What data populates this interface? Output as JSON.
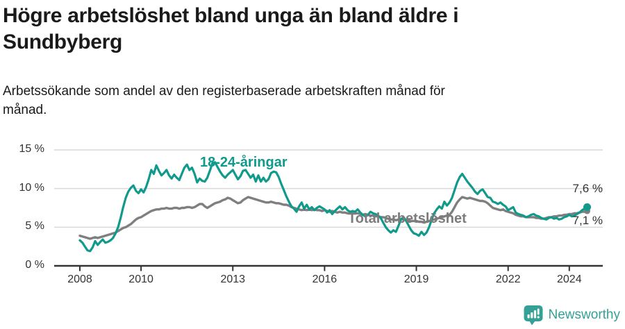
{
  "header": {
    "title_lines": [
      "Högre arbetslöshet bland unga än bland äldre i",
      "Sundbyberg"
    ],
    "subtitle_lines": [
      "Arbetssökande som andel av den registerbaserade arbetskraften månad för",
      "månad."
    ]
  },
  "chart_data": {
    "type": "line",
    "x_start": 2008.0,
    "x_step_months": 1,
    "xlim": [
      2007.2,
      2025.1
    ],
    "ylim": [
      0,
      15
    ],
    "grid": "horizontal",
    "legend_position": "inline-labels",
    "y_ticks": [
      {
        "value": 0,
        "label": "0 %"
      },
      {
        "value": 5,
        "label": "5 %"
      },
      {
        "value": 10,
        "label": "10 %"
      },
      {
        "value": 15,
        "label": "15 %"
      }
    ],
    "x_ticks": [
      {
        "value": 2008,
        "label": "2008"
      },
      {
        "value": 2010,
        "label": "2010"
      },
      {
        "value": 2013,
        "label": "2013"
      },
      {
        "value": 2016,
        "label": "2016"
      },
      {
        "value": 2019,
        "label": "2019"
      },
      {
        "value": 2022,
        "label": "2022"
      },
      {
        "value": 2024,
        "label": "2024"
      }
    ],
    "series": [
      {
        "name": "18-24-åringar",
        "color": "#109a8c",
        "end_label": "7,6 %",
        "end_value": 7.6,
        "values": [
          3.3,
          3.0,
          2.5,
          2.0,
          1.9,
          2.4,
          3.2,
          2.7,
          3.1,
          3.4,
          3.0,
          3.1,
          3.3,
          3.6,
          4.2,
          5.0,
          6.2,
          7.6,
          8.8,
          9.6,
          10.1,
          10.4,
          9.7,
          9.4,
          9.9,
          9.5,
          10.2,
          11.2,
          12.4,
          11.9,
          13.0,
          12.3,
          11.7,
          12.0,
          12.4,
          11.7,
          11.3,
          11.8,
          11.4,
          11.1,
          11.9,
          12.7,
          13.1,
          12.4,
          12.7,
          11.9,
          10.8,
          11.3,
          11.0,
          10.9,
          11.4,
          12.3,
          13.3,
          13.4,
          12.8,
          12.2,
          11.7,
          11.4,
          11.8,
          12.1,
          12.4,
          11.8,
          11.2,
          11.6,
          12.3,
          12.4,
          11.9,
          11.4,
          11.8,
          10.9,
          11.7,
          10.9,
          11.4,
          10.9,
          11.2,
          12.0,
          12.2,
          12.1,
          11.5,
          10.6,
          9.8,
          9.0,
          8.3,
          7.7,
          7.4,
          7.0,
          7.7,
          8.2,
          7.4,
          7.9,
          7.3,
          7.6,
          7.2,
          7.5,
          7.7,
          7.5,
          7.3,
          6.9,
          7.2,
          6.7,
          7.1,
          7.4,
          7.7,
          7.3,
          7.6,
          7.2,
          7.0,
          7.1,
          7.0,
          7.3,
          6.9,
          6.6,
          6.4,
          6.6,
          7.0,
          6.8,
          6.7,
          6.5,
          6.2,
          5.6,
          5.0,
          4.6,
          4.3,
          4.6,
          4.4,
          5.2,
          6.0,
          6.3,
          5.8,
          5.2,
          4.6,
          4.2,
          4.1,
          3.9,
          4.4,
          4.0,
          4.3,
          5.0,
          6.0,
          6.8,
          7.3,
          7.7,
          7.4,
          8.3,
          7.8,
          8.2,
          8.8,
          9.8,
          10.8,
          11.5,
          11.9,
          11.4,
          10.9,
          10.5,
          10.1,
          9.6,
          9.3,
          9.7,
          9.9,
          9.4,
          8.9,
          8.8,
          8.3,
          8.2,
          8.0,
          8.2,
          7.9,
          7.7,
          7.2,
          7.4,
          7.6,
          6.9,
          6.7,
          6.6,
          6.5,
          6.3,
          6.4,
          6.6,
          6.7,
          6.5,
          6.4,
          6.2,
          6.1,
          6.0,
          6.2,
          6.3,
          6.1,
          6.2,
          6.0,
          6.1,
          6.3,
          6.4,
          6.6,
          6.4,
          6.5,
          6.7,
          6.9,
          7.2,
          7.4,
          7.6
        ]
      },
      {
        "name": "Total arbetslöshet",
        "color": "#7f7f7f",
        "end_label": "7,1 %",
        "end_value": 7.1,
        "values": [
          3.9,
          3.8,
          3.7,
          3.6,
          3.5,
          3.6,
          3.7,
          3.6,
          3.7,
          3.8,
          3.9,
          4.0,
          4.1,
          4.2,
          4.3,
          4.5,
          4.7,
          4.9,
          5.0,
          5.2,
          5.4,
          5.7,
          6.0,
          6.2,
          6.3,
          6.5,
          6.7,
          6.9,
          7.1,
          7.2,
          7.3,
          7.3,
          7.4,
          7.4,
          7.5,
          7.4,
          7.4,
          7.5,
          7.5,
          7.4,
          7.5,
          7.5,
          7.6,
          7.6,
          7.5,
          7.6,
          7.8,
          8.0,
          8.0,
          7.7,
          7.5,
          7.7,
          7.9,
          8.1,
          8.2,
          8.3,
          8.5,
          8.6,
          8.8,
          8.7,
          8.5,
          8.3,
          8.1,
          8.2,
          8.5,
          8.7,
          8.9,
          8.8,
          8.7,
          8.6,
          8.5,
          8.4,
          8.3,
          8.2,
          8.2,
          8.3,
          8.2,
          8.1,
          8.1,
          8.0,
          7.9,
          7.9,
          7.8,
          7.6,
          7.5,
          7.4,
          7.3,
          7.2,
          7.3,
          7.2,
          7.3,
          7.2,
          7.3,
          7.2,
          7.2,
          7.1,
          7.2,
          7.1,
          7.0,
          7.1,
          7.0,
          6.9,
          7.0,
          6.9,
          6.9,
          6.8,
          6.8,
          6.9,
          6.8,
          6.8,
          6.7,
          6.6,
          6.7,
          6.6,
          6.5,
          6.5,
          6.4,
          6.4,
          6.3,
          6.3,
          6.2,
          6.1,
          6.0,
          6.0,
          5.9,
          6.0,
          6.1,
          6.0,
          5.9,
          5.9,
          5.8,
          5.8,
          5.8,
          5.7,
          5.7,
          5.6,
          5.7,
          5.8,
          5.9,
          6.0,
          6.1,
          6.2,
          6.3,
          6.4,
          6.5,
          6.6,
          7.0,
          7.6,
          8.2,
          8.6,
          8.9,
          8.8,
          8.7,
          8.8,
          8.7,
          8.6,
          8.5,
          8.4,
          8.4,
          8.3,
          8.1,
          7.8,
          7.5,
          7.4,
          7.3,
          7.2,
          7.3,
          7.1,
          7.0,
          6.9,
          6.8,
          6.6,
          6.5,
          6.4,
          6.4,
          6.3,
          6.3,
          6.3,
          6.3,
          6.2,
          6.2,
          6.1,
          6.1,
          6.2,
          6.3,
          6.3,
          6.4,
          6.4,
          6.5,
          6.5,
          6.6,
          6.6,
          6.7,
          6.7,
          6.8,
          6.8,
          6.9,
          7.0,
          7.0,
          7.1
        ]
      }
    ]
  },
  "footer": {
    "brand": "Newsworthy",
    "logo_icon": "newsworthy-bar-chart-bubble-icon"
  },
  "colors": {
    "accent_teal": "#109a8c",
    "line_gray": "#7f7f7f",
    "label_gray": "#7c7c7c",
    "brand_teal": "#35a096",
    "axis_text": "#333333",
    "gridline": "#d9d9d9",
    "axis_line": "#333333",
    "title_text": "#1a1a1a"
  }
}
